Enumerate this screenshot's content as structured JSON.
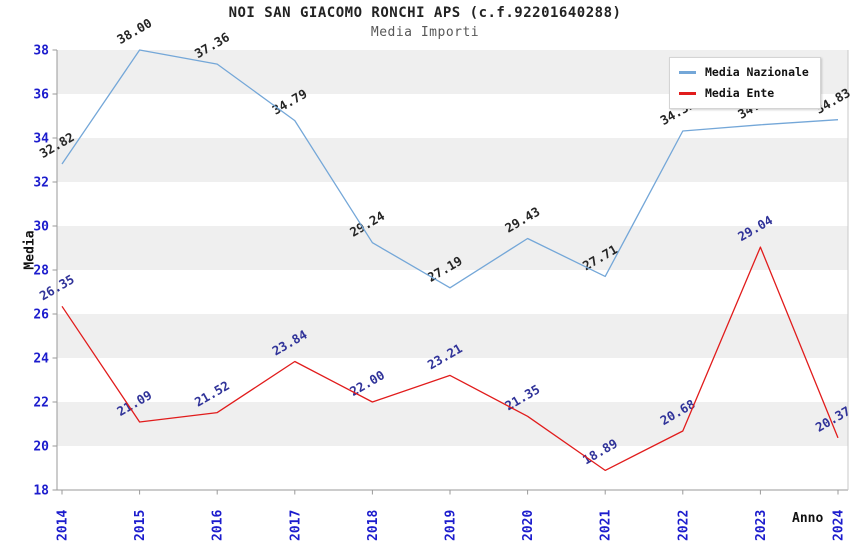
{
  "header": {
    "title": "NOI SAN GIACOMO RONCHI APS (c.f.92201640288)",
    "subtitle": "Media Importi"
  },
  "chart_data": {
    "type": "line",
    "title": "NOI SAN GIACOMO RONCHI APS (c.f.92201640288)",
    "subtitle": "Media Importi",
    "xlabel": "Anno",
    "ylabel": "Media",
    "categories": [
      2014,
      2015,
      2016,
      2017,
      2018,
      2019,
      2020,
      2021,
      2022,
      2023,
      2024
    ],
    "series": [
      {
        "name": "Media Nazionale",
        "color": "#74a7d8",
        "label_color": "#262626",
        "values": [
          32.82,
          38.0,
          37.36,
          34.79,
          29.24,
          27.19,
          29.43,
          27.71,
          34.32,
          34.6,
          34.83
        ]
      },
      {
        "name": "Media Ente",
        "color": "#e11c1c",
        "label_color": "#303399",
        "values": [
          26.35,
          21.09,
          21.52,
          23.84,
          22.0,
          23.21,
          21.35,
          18.89,
          20.68,
          29.04,
          20.37
        ]
      }
    ],
    "ylim": [
      18,
      38
    ],
    "ytick_step": 2,
    "yticks": [
      18,
      20,
      22,
      24,
      26,
      28,
      30,
      32,
      34,
      36,
      38
    ],
    "grid": "horizontal-bands",
    "band_colors": [
      "#ffffff",
      "#efefef"
    ],
    "tick_label_color": "#1c1ccd",
    "axis_color": "#9a9a9a",
    "legend_position": "top-right"
  }
}
